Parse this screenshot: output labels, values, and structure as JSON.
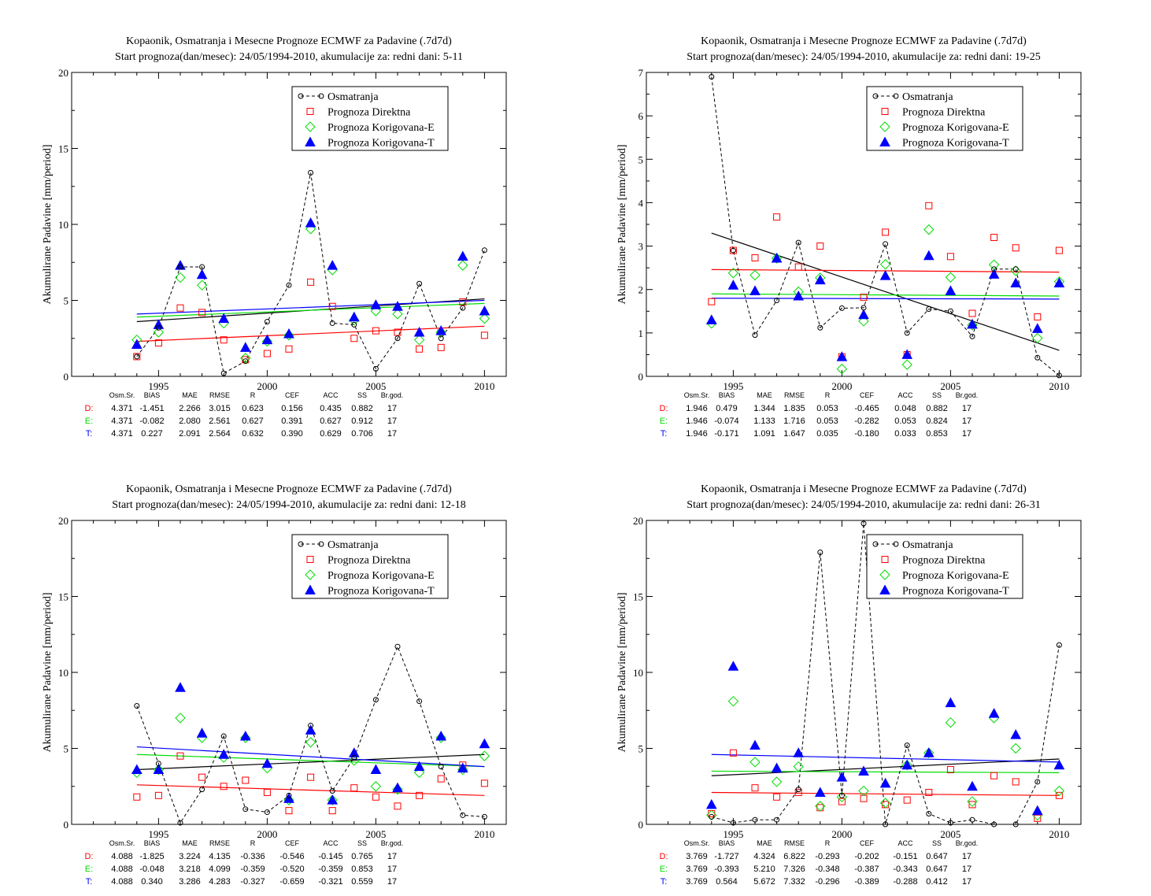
{
  "colors": {
    "obs": "#000000",
    "direktna": "#ff0000",
    "korigovana_e": "#00dd00",
    "korigovana_t": "#0000ff",
    "trend_obs": "#000000"
  },
  "stats_header": [
    "Osm.Sr.",
    "BIAS",
    "MAE",
    "RMSE",
    "R",
    "CEF",
    "ACC",
    "SS",
    "Br.god."
  ],
  "chart_data": [
    {
      "type": "scatter",
      "title": "Kopaonik, Osmatranja i Mesecne Prognoze ECMWF za Padavine (.7d7d)",
      "subtitle": "Start prognoza(dan/mesec): 24/05/1994-2010, akumulacije za: redni dani: 5-11",
      "ylabel": "Akumulirane Padavine [mm/period]",
      "xlim": [
        1991,
        2011
      ],
      "ylim": [
        0,
        20
      ],
      "x_ticks": [
        1995,
        2000,
        2005,
        2010
      ],
      "y_ticks": [
        0,
        5,
        10,
        15,
        20
      ],
      "legend_position": "top-right",
      "x": [
        1994,
        1995,
        1996,
        1997,
        1998,
        1999,
        2000,
        2001,
        2002,
        2003,
        2004,
        2005,
        2006,
        2007,
        2008,
        2009,
        2010
      ],
      "series": [
        {
          "name": "Osmatranja",
          "values": [
            1.3,
            3.2,
            7.2,
            7.2,
            0.2,
            1.0,
            3.6,
            6.0,
            13.4,
            3.5,
            3.4,
            0.5,
            2.5,
            6.1,
            2.5,
            4.5,
            8.3
          ]
        },
        {
          "name": "Prognoza Direktna",
          "values": [
            1.3,
            2.2,
            4.5,
            4.2,
            2.4,
            1.1,
            1.5,
            1.8,
            6.2,
            4.6,
            2.5,
            3.0,
            2.9,
            1.8,
            1.9,
            4.9,
            2.7
          ]
        },
        {
          "name": "Prognoza Korigovana-E",
          "values": [
            2.4,
            2.9,
            6.5,
            6.0,
            3.5,
            1.2,
            2.3,
            2.7,
            9.7,
            7.0,
            3.7,
            4.3,
            4.1,
            2.4,
            2.9,
            7.3,
            3.8
          ]
        },
        {
          "name": "Prognoza Korigovana-T",
          "values": [
            2.1,
            3.4,
            7.3,
            6.7,
            3.8,
            1.9,
            2.4,
            2.8,
            10.1,
            7.3,
            3.9,
            4.7,
            4.6,
            2.9,
            3.0,
            7.9,
            4.3
          ]
        }
      ],
      "trends": {
        "Osmatranja": [
          3.6,
          5.1
        ],
        "Prognoza Direktna": [
          2.3,
          3.3
        ],
        "Prognoza Korigovana-E": [
          3.9,
          4.8
        ],
        "Prognoza Korigovana-T": [
          4.1,
          5.0
        ]
      },
      "stats": [
        {
          "label": "D:",
          "values": [
            "4.371",
            "-1.451",
            "2.266",
            "3.015",
            "0.623",
            "0.156",
            "0.435",
            "0.882",
            "17"
          ]
        },
        {
          "label": "E:",
          "values": [
            "4.371",
            "-0.082",
            "2.080",
            "2.561",
            "0.627",
            "0.391",
            "0.627",
            "0.912",
            "17"
          ]
        },
        {
          "label": "T:",
          "values": [
            "4.371",
            "0.227",
            "2.091",
            "2.564",
            "0.632",
            "0.390",
            "0.629",
            "0.706",
            "17"
          ]
        }
      ]
    },
    {
      "type": "scatter",
      "title": "Kopaonik, Osmatranja i Mesecne Prognoze ECMWF za Padavine (.7d7d)",
      "subtitle": "Start prognoza(dan/mesec): 24/05/1994-2010, akumulacije za: redni dani: 19-25",
      "ylabel": "Akumulirane Padavine [mm/period]",
      "xlim": [
        1991,
        2011
      ],
      "ylim": [
        0,
        7
      ],
      "x_ticks": [
        1995,
        2000,
        2005,
        2010
      ],
      "y_ticks": [
        0,
        1,
        2,
        3,
        4,
        5,
        6,
        7
      ],
      "legend_position": "top-right",
      "x": [
        1994,
        1995,
        1996,
        1997,
        1998,
        1999,
        2000,
        2001,
        2002,
        2003,
        2004,
        2005,
        2006,
        2007,
        2008,
        2009,
        2010
      ],
      "series": [
        {
          "name": "Osmatranja",
          "values": [
            6.9,
            2.9,
            0.95,
            1.75,
            3.08,
            1.12,
            1.57,
            1.58,
            3.05,
            1.0,
            1.55,
            1.5,
            0.92,
            2.47,
            2.47,
            0.43,
            0.02
          ]
        },
        {
          "name": "Prognoza Direktna",
          "values": [
            1.72,
            2.9,
            2.73,
            3.67,
            2.52,
            3.0,
            0.45,
            1.82,
            3.32,
            0.5,
            3.93,
            2.76,
            1.45,
            3.2,
            2.96,
            1.37,
            2.9
          ]
        },
        {
          "name": "Prognoza Korigovana-E",
          "values": [
            1.22,
            2.38,
            2.33,
            2.72,
            1.95,
            2.27,
            0.17,
            1.27,
            2.58,
            0.27,
            3.38,
            2.28,
            1.18,
            2.57,
            2.43,
            0.88,
            2.18
          ]
        },
        {
          "name": "Prognoza Korigovana-T",
          "values": [
            1.3,
            2.1,
            1.97,
            2.72,
            1.85,
            2.22,
            0.45,
            1.42,
            2.32,
            0.5,
            2.78,
            1.97,
            1.2,
            2.35,
            2.15,
            1.1,
            2.15
          ]
        }
      ],
      "trends": {
        "Osmatranja": [
          3.3,
          0.6
        ],
        "Prognoza Direktna": [
          2.46,
          2.4
        ],
        "Prognoza Korigovana-E": [
          1.9,
          1.85
        ],
        "Prognoza Korigovana-T": [
          1.8,
          1.78
        ]
      },
      "stats": [
        {
          "label": "D:",
          "values": [
            "1.946",
            "0.479",
            "1.344",
            "1.835",
            "0.053",
            "-0.465",
            "0.048",
            "0.882",
            "17"
          ]
        },
        {
          "label": "E:",
          "values": [
            "1.946",
            "-0.074",
            "1.133",
            "1.716",
            "0.053",
            "-0.282",
            "0.053",
            "0.824",
            "17"
          ]
        },
        {
          "label": "T:",
          "values": [
            "1.946",
            "-0.171",
            "1.091",
            "1.647",
            "0.035",
            "-0.180",
            "0.033",
            "0.853",
            "17"
          ]
        }
      ]
    },
    {
      "type": "scatter",
      "title": "Kopaonik, Osmatranja i Mesecne Prognoze ECMWF za Padavine (.7d7d)",
      "subtitle": "Start prognoza(dan/mesec): 24/05/1994-2010, akumulacije za: redni dani: 12-18",
      "ylabel": "Akumulirane Padavine [mm/period]",
      "xlim": [
        1991,
        2011
      ],
      "ylim": [
        0,
        20
      ],
      "x_ticks": [
        1995,
        2000,
        2005,
        2010
      ],
      "y_ticks": [
        0,
        5,
        10,
        15,
        20
      ],
      "legend_position": "top-right",
      "x": [
        1994,
        1995,
        1996,
        1997,
        1998,
        1999,
        2000,
        2001,
        2002,
        2003,
        2004,
        2005,
        2006,
        2007,
        2008,
        2009,
        2010
      ],
      "series": [
        {
          "name": "Osmatranja",
          "values": [
            7.8,
            4.0,
            0.1,
            2.3,
            5.8,
            1.0,
            0.8,
            1.9,
            6.5,
            2.2,
            4.4,
            8.2,
            11.7,
            8.1,
            3.8,
            0.6,
            0.5
          ]
        },
        {
          "name": "Prognoza Direktna",
          "values": [
            1.8,
            1.9,
            4.5,
            3.1,
            2.5,
            2.9,
            2.1,
            0.9,
            3.1,
            0.9,
            2.4,
            1.8,
            1.2,
            1.9,
            3.0,
            3.9,
            2.7
          ]
        },
        {
          "name": "Prognoza Korigovana-E",
          "values": [
            3.4,
            3.6,
            7.0,
            5.7,
            4.4,
            5.7,
            3.7,
            1.6,
            5.4,
            1.6,
            4.2,
            2.5,
            2.3,
            3.4,
            5.7,
            3.6,
            4.5
          ]
        },
        {
          "name": "Prognoza Korigovana-T",
          "values": [
            3.6,
            3.6,
            9.0,
            6.0,
            4.6,
            5.8,
            4.0,
            1.7,
            6.2,
            1.6,
            4.7,
            3.6,
            2.4,
            3.8,
            5.8,
            3.7,
            5.3
          ]
        }
      ],
      "trends": {
        "Osmatranja": [
          3.6,
          4.6
        ],
        "Prognoza Direktna": [
          2.6,
          1.9
        ],
        "Prognoza Korigovana-E": [
          4.6,
          3.8
        ],
        "Prognoza Korigovana-T": [
          5.1,
          3.8
        ]
      },
      "stats": [
        {
          "label": "D:",
          "values": [
            "4.088",
            "-1.825",
            "3.224",
            "4.135",
            "-0.336",
            "-0.546",
            "-0.145",
            "0.765",
            "17"
          ]
        },
        {
          "label": "E:",
          "values": [
            "4.088",
            "-0.048",
            "3.218",
            "4.099",
            "-0.359",
            "-0.520",
            "-0.359",
            "0.853",
            "17"
          ]
        },
        {
          "label": "T:",
          "values": [
            "4.088",
            "0.340",
            "3.286",
            "4.283",
            "-0.327",
            "-0.659",
            "-0.321",
            "0.559",
            "17"
          ]
        }
      ]
    },
    {
      "type": "scatter",
      "title": "Kopaonik, Osmatranja i Mesecne Prognoze ECMWF za Padavine (.7d7d)",
      "subtitle": "Start prognoza(dan/mesec): 24/05/1994-2010, akumulacije za: redni dani: 26-31",
      "ylabel": "Akumulirane Padavine [mm/period]",
      "xlim": [
        1991,
        2011
      ],
      "ylim": [
        0,
        20
      ],
      "x_ticks": [
        1995,
        2000,
        2005,
        2010
      ],
      "y_ticks": [
        0,
        5,
        10,
        15,
        20
      ],
      "legend_position": "top-right",
      "x": [
        1994,
        1995,
        1996,
        1997,
        1998,
        1999,
        2000,
        2001,
        2002,
        2003,
        2004,
        2005,
        2006,
        2007,
        2008,
        2009,
        2010
      ],
      "series": [
        {
          "name": "Osmatranja",
          "values": [
            0.5,
            0.1,
            0.3,
            0.3,
            2.3,
            17.9,
            1.9,
            19.8,
            0.0,
            5.2,
            0.7,
            0.1,
            0.3,
            0.0,
            0.0,
            2.8,
            11.8
          ]
        },
        {
          "name": "Prognoza Direktna",
          "values": [
            0.7,
            4.7,
            2.4,
            1.8,
            2.1,
            1.1,
            1.5,
            1.7,
            1.3,
            1.6,
            2.1,
            3.6,
            1.3,
            3.2,
            2.8,
            0.4,
            1.9
          ]
        },
        {
          "name": "Prognoza Korigovana-E",
          "values": [
            0.6,
            8.1,
            4.1,
            2.8,
            3.8,
            1.2,
            1.8,
            2.2,
            1.4,
            3.9,
            4.7,
            6.7,
            1.5,
            7.0,
            5.0,
            0.6,
            2.2
          ]
        },
        {
          "name": "Prognoza Korigovana-T",
          "values": [
            1.3,
            10.4,
            5.2,
            3.7,
            4.7,
            2.1,
            3.1,
            3.5,
            2.7,
            3.9,
            4.7,
            8.0,
            2.5,
            7.3,
            5.9,
            0.9,
            3.9
          ]
        }
      ],
      "trends": {
        "Osmatranja": [
          3.2,
          4.3
        ],
        "Prognoza Direktna": [
          2.1,
          1.9
        ],
        "Prognoza Korigovana-E": [
          3.5,
          3.4
        ],
        "Prognoza Korigovana-T": [
          4.6,
          4.1
        ]
      },
      "stats": [
        {
          "label": "D:",
          "values": [
            "3.769",
            "-1.727",
            "4.324",
            "6.822",
            "-0.293",
            "-0.202",
            "-0.151",
            "0.647",
            "17"
          ]
        },
        {
          "label": "E:",
          "values": [
            "3.769",
            "-0.393",
            "5.210",
            "7.326",
            "-0.348",
            "-0.387",
            "-0.343",
            "0.647",
            "17"
          ]
        },
        {
          "label": "T:",
          "values": [
            "3.769",
            "0.564",
            "5.672",
            "7.332",
            "-0.296",
            "-0.389",
            "-0.288",
            "0.412",
            "17"
          ]
        }
      ]
    }
  ]
}
